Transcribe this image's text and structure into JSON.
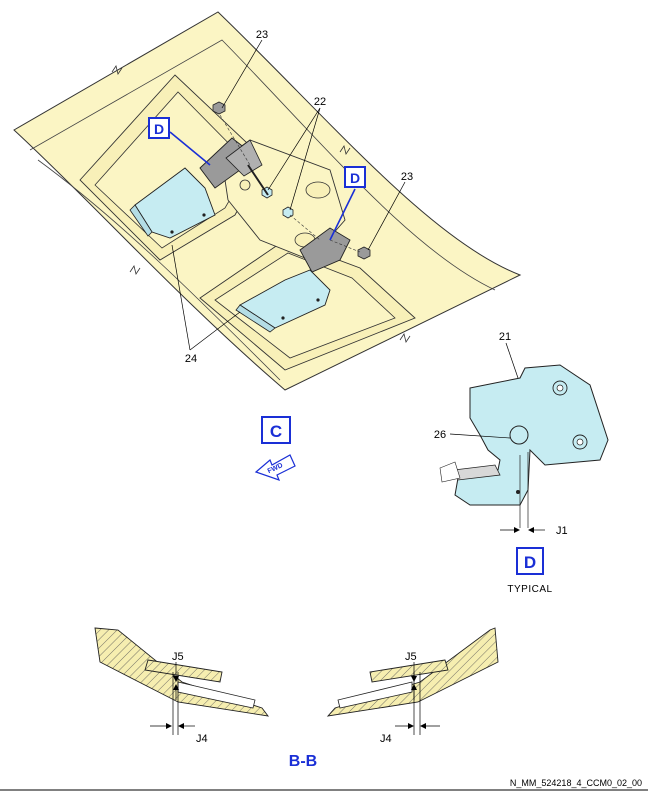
{
  "callouts": {
    "c23_top": "23",
    "c22": "22",
    "c23_right": "23",
    "c24": "24",
    "c21": "21",
    "c26": "26",
    "j1": "J1",
    "j5_left": "J5",
    "j4_left": "J4",
    "j5_right": "J5",
    "j4_right": "J4"
  },
  "view_labels": {
    "d_left": "D",
    "d_right": "D",
    "c_view": "C",
    "d_detail": "D"
  },
  "fwd_arrow_text": "FWD",
  "detail_caption": "TYPICAL",
  "section_title": "B-B",
  "figure_id": "N_MM_524218_4_CCM0_02_00",
  "colors": {
    "panel": "#fbf5c4",
    "part": "#c6ecf2",
    "hatch_fill": "#f6eeb0",
    "grey_part": "#9a9a9a",
    "label_blue": "#1a2fd6"
  }
}
